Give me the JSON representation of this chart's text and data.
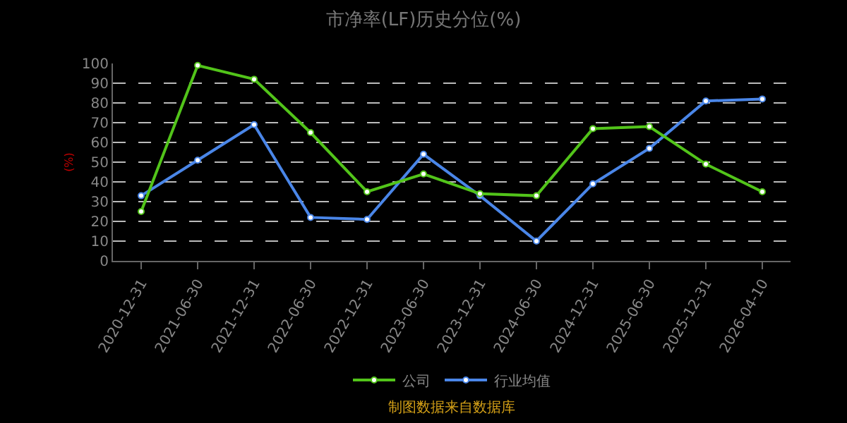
{
  "chart_data": {
    "type": "line",
    "title": "市净率(LF)历史分位(%)",
    "ylabel": "(%)",
    "categories": [
      "2020-12-31",
      "2021-06-30",
      "2021-12-31",
      "2022-06-30",
      "2022-12-31",
      "2023-06-30",
      "2023-12-31",
      "2024-06-30",
      "2024-12-31",
      "2025-06-30",
      "2025-12-31",
      "2026-04-10"
    ],
    "series": [
      {
        "name": "公司",
        "color": "#52c41a",
        "values": [
          25,
          99,
          92,
          65,
          35,
          44,
          34,
          33,
          67,
          68,
          49,
          35
        ]
      },
      {
        "name": "行业均值",
        "color": "#4a86e8",
        "values": [
          33,
          51,
          69,
          22,
          21,
          54,
          33,
          10,
          39,
          57,
          81,
          82
        ]
      }
    ],
    "ylim": [
      0,
      100
    ],
    "yticks": [
      0,
      10,
      20,
      30,
      40,
      50,
      60,
      70,
      80,
      90,
      100
    ],
    "grid": "y",
    "legend": "bottom",
    "marker": "circle",
    "line_style": "solid",
    "annotations": [
      "制图数据来自数据库"
    ]
  }
}
